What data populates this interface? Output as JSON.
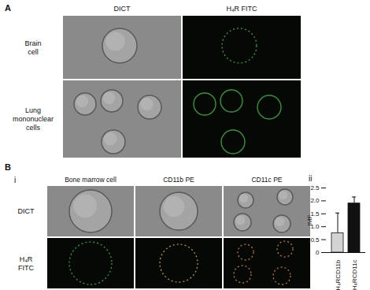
{
  "figure": {
    "panel_a": {
      "label": "A",
      "columns": [
        "DICT",
        "H₄R FITC"
      ],
      "rows": [
        "Brain cell",
        "Lung mononuclear cells"
      ]
    },
    "panel_b": {
      "label": "B",
      "sub_i": "i",
      "sub_ii": "ii",
      "columns": [
        "Bone marrow cell",
        "CD11b PE",
        "CD11c PE"
      ],
      "rows": [
        "DICT",
        "H₄R FITC"
      ]
    }
  },
  "chart_data": {
    "type": "bar",
    "categories": [
      "H₄RCD11b",
      "H₄RCD11c"
    ],
    "values": [
      0.75,
      1.9
    ],
    "errors": [
      0.78,
      0.25
    ],
    "colors": [
      "#d3d3d3",
      "#111111"
    ],
    "ylabel": "IMF",
    "ylim": [
      0,
      2.5
    ],
    "yticks": [
      0,
      0.5,
      {
        "value": 1,
        "label": "1.0"
      },
      1.5,
      {
        "value": 2,
        "label": "2.0"
      },
      2.5
    ]
  }
}
